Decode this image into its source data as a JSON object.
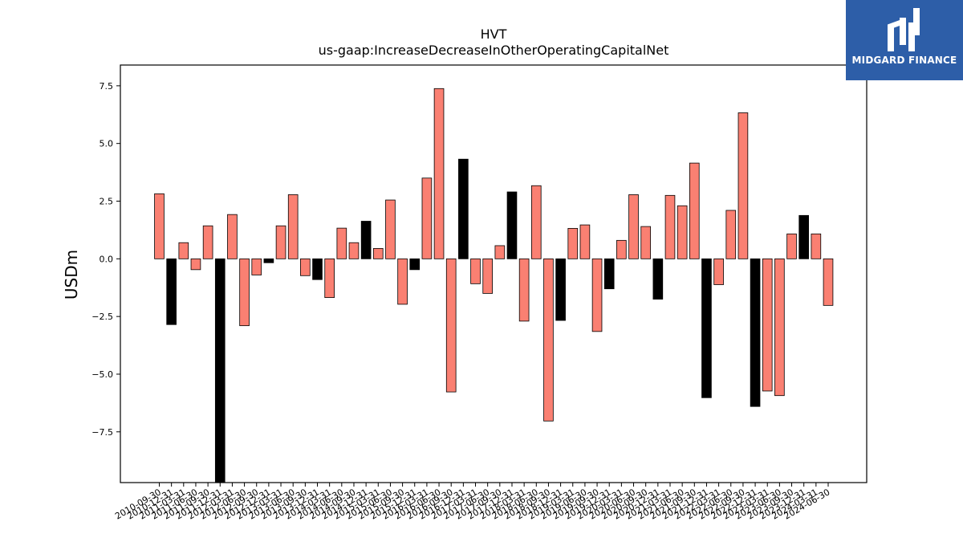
{
  "chart_data": {
    "type": "bar",
    "title": "HVT",
    "subtitle": "us-gaap:IncreaseDecreaseInOtherOperatingCapitalNet",
    "ylabel": "USDm",
    "xlabel": "",
    "ylim": [
      -9.7,
      8.4
    ],
    "yticks": [
      7.5,
      5.0,
      2.5,
      0.0,
      -2.5,
      -5.0,
      -7.5
    ],
    "ytick_labels": [
      "7.5",
      "5.0",
      "2.5",
      "0.0",
      "−2.5",
      "−5.0",
      "−7.5"
    ],
    "grid": false,
    "colors": {
      "positive": "#fa8072",
      "negative": "#000000",
      "edge": "#000000"
    },
    "categories": [
      "2010-09-30",
      "2010-12-31",
      "2011-03-31",
      "2011-06-30",
      "2011-09-30",
      "2011-12-31",
      "2012-03-31",
      "2012-06-30",
      "2012-09-30",
      "2012-12-31",
      "2013-03-31",
      "2013-06-30",
      "2013-09-30",
      "2013-12-31",
      "2014-03-31",
      "2014-06-30",
      "2014-09-30",
      "2014-12-31",
      "2015-03-31",
      "2015-06-30",
      "2015-09-30",
      "2015-12-31",
      "2016-03-31",
      "2016-06-30",
      "2016-09-30",
      "2016-12-31",
      "2017-03-31",
      "2017-06-30",
      "2017-09-30",
      "2017-12-31",
      "2018-03-31",
      "2018-06-30",
      "2018-09-30",
      "2018-12-31",
      "2019-03-31",
      "2019-06-30",
      "2019-09-30",
      "2019-12-31",
      "2020-03-31",
      "2020-06-30",
      "2020-09-30",
      "2020-12-31",
      "2021-03-31",
      "2021-06-30",
      "2021-09-30",
      "2021-12-31",
      "2022-03-31",
      "2022-06-30",
      "2022-09-30",
      "2022-12-31",
      "2023-03-31",
      "2023-06-30",
      "2023-09-30",
      "2023-12-31",
      "2024-03-31",
      "2024-06-30"
    ],
    "values": [
      2.82,
      -2.85,
      0.7,
      -0.47,
      1.43,
      -9.7,
      1.92,
      -2.9,
      -0.7,
      -0.17,
      1.43,
      2.78,
      -0.73,
      -0.9,
      -1.68,
      1.33,
      0.7,
      1.63,
      0.45,
      2.55,
      -1.97,
      -0.47,
      3.5,
      7.38,
      -5.77,
      4.32,
      -1.08,
      -1.5,
      0.57,
      2.9,
      -2.7,
      3.17,
      -7.03,
      -2.67,
      1.32,
      1.47,
      -3.15,
      -1.3,
      0.8,
      2.78,
      1.4,
      -1.75,
      2.75,
      2.3,
      4.15,
      -6.02,
      -1.12,
      2.1,
      6.33,
      -6.4,
      -5.73,
      -5.93,
      1.08,
      1.88,
      1.08,
      -2.02
    ],
    "bar_colors": [
      "pos",
      "neg",
      "pos",
      "pos",
      "pos",
      "neg",
      "pos",
      "pos",
      "pos",
      "neg",
      "pos",
      "pos",
      "pos",
      "neg",
      "pos",
      "pos",
      "pos",
      "neg",
      "pos",
      "pos",
      "pos",
      "neg",
      "pos",
      "pos",
      "pos",
      "neg",
      "pos",
      "pos",
      "pos",
      "neg",
      "pos",
      "pos",
      "pos",
      "neg",
      "pos",
      "pos",
      "pos",
      "neg",
      "pos",
      "pos",
      "pos",
      "neg",
      "pos",
      "pos",
      "pos",
      "neg",
      "pos",
      "pos",
      "pos",
      "neg",
      "pos",
      "pos",
      "pos",
      "neg",
      "pos",
      "pos"
    ]
  },
  "logo": {
    "text": "MIDGARD FINANCE",
    "background": "#2d5ea8"
  }
}
